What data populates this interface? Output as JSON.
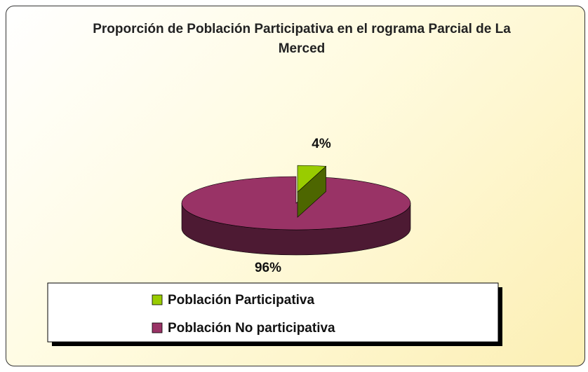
{
  "chart_data": {
    "type": "pie",
    "title": "Proporción de Población Participativa en el rograma Parcial de La Merced",
    "categories": [
      "Población Participativa",
      "Población No participativa"
    ],
    "values": [
      4,
      96
    ],
    "value_labels": [
      "4%",
      "96%"
    ],
    "colors": [
      "#99cc00",
      "#993366"
    ]
  }
}
